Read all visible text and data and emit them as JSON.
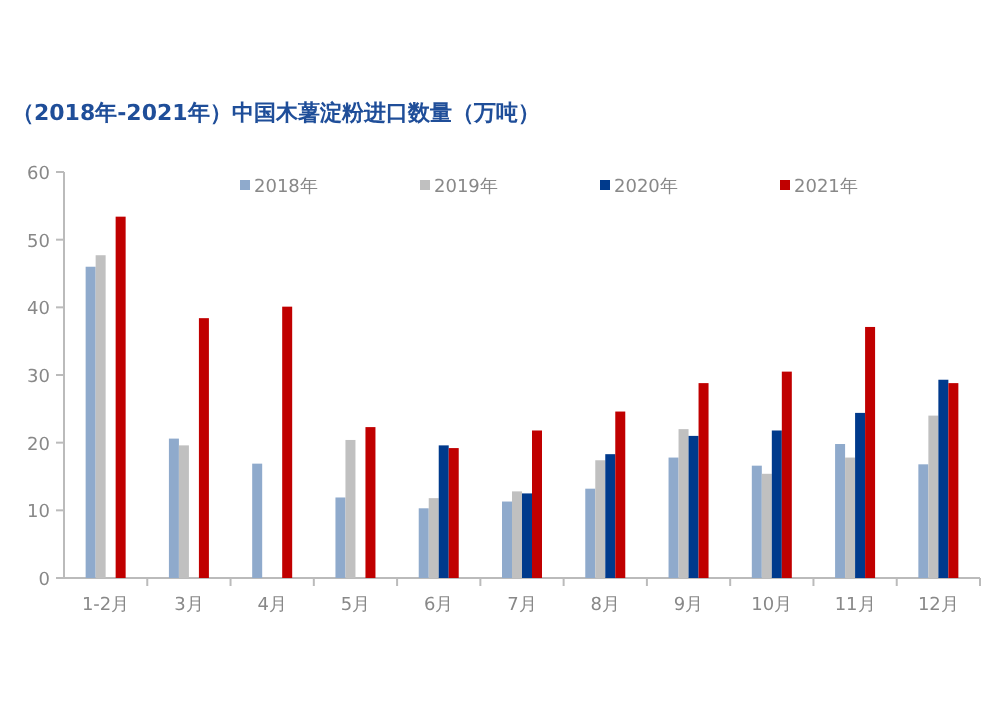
{
  "chart_data": {
    "type": "bar",
    "title": "（2018年-2021年）中国木薯淀粉进口数量（万吨）",
    "categories": [
      "1-2月",
      "3月",
      "4月",
      "5月",
      "6月",
      "7月",
      "8月",
      "9月",
      "10月",
      "11月",
      "12月"
    ],
    "series": [
      {
        "name": "2018年",
        "color": "#8faacc",
        "values": [
          46.0,
          20.6,
          16.9,
          11.9,
          10.3,
          11.3,
          13.2,
          17.8,
          16.6,
          19.8,
          16.8
        ]
      },
      {
        "name": "2019年",
        "color": "#c0c0c0",
        "values": [
          47.7,
          19.6,
          null,
          20.4,
          11.8,
          12.8,
          17.4,
          22.0,
          15.4,
          17.8,
          24.0
        ]
      },
      {
        "name": "2020年",
        "color": "#003a8c",
        "values": [
          null,
          null,
          null,
          null,
          19.6,
          12.5,
          18.3,
          21.0,
          21.8,
          24.4,
          29.3
        ]
      },
      {
        "name": "2021年",
        "color": "#c00000",
        "values": [
          53.4,
          38.4,
          40.1,
          22.3,
          19.2,
          21.8,
          24.6,
          28.8,
          30.5,
          37.1,
          28.8
        ]
      }
    ],
    "ylim": [
      0,
      60
    ],
    "yticks": [
      0,
      10,
      20,
      30,
      40,
      50,
      60
    ],
    "grid": false,
    "legend": "top"
  }
}
